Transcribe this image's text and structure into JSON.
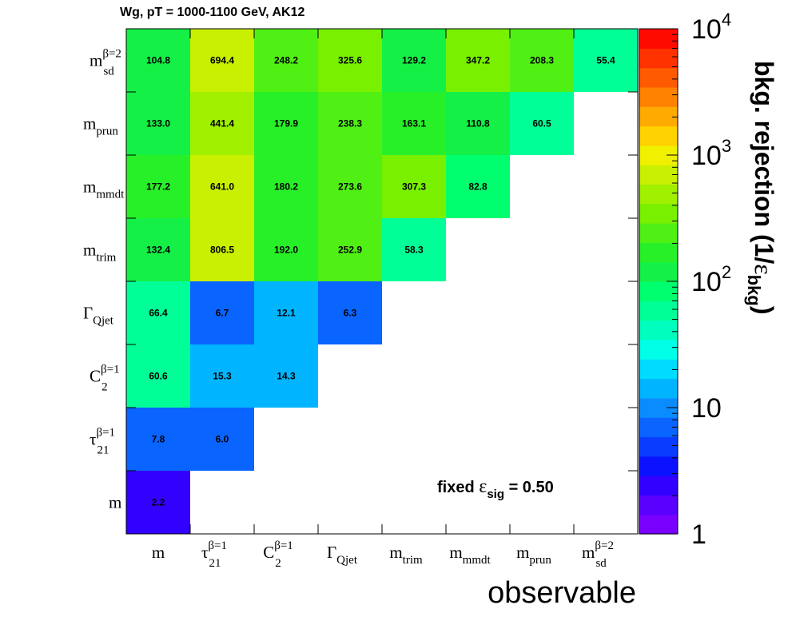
{
  "chart_data": {
    "type": "heatmap",
    "title": "Wg, pT = 1000-1100 GeV, AK12",
    "xlabel": "observable",
    "zlabel": "bkg. rejection (1/ε_bkg)",
    "zlabel_parts": {
      "main": "bkg. rejection (1/",
      "eps": "ε",
      "sub": "bkg",
      "close": ")"
    },
    "zscale": "log",
    "zlim": [
      1,
      10000
    ],
    "z_ticks": [
      {
        "value": 1,
        "base": "1",
        "exp": ""
      },
      {
        "value": 10,
        "base": "10",
        "exp": ""
      },
      {
        "value": 100,
        "base": "10",
        "exp": "2"
      },
      {
        "value": 1000,
        "base": "10",
        "exp": "3"
      },
      {
        "value": 10000,
        "base": "10",
        "exp": "4"
      }
    ],
    "annotation": {
      "prefix": "fixed ",
      "eps": "ε",
      "sub": "sig",
      "suffix": " = 0.50"
    },
    "categories": [
      {
        "main": "m",
        "sub": "",
        "sup": ""
      },
      {
        "main": "τ",
        "sub": "21",
        "sup": "β=1"
      },
      {
        "main": "C",
        "sub": "2",
        "sup": "β=1"
      },
      {
        "main": "Γ",
        "sub": "Qjet",
        "sup": ""
      },
      {
        "main": "m",
        "sub": "trim",
        "sup": ""
      },
      {
        "main": "m",
        "sub": "mmdt",
        "sup": ""
      },
      {
        "main": "m",
        "sub": "prun",
        "sup": ""
      },
      {
        "main": "m",
        "sub": "sd",
        "sup": "β=2"
      }
    ],
    "cells": [
      {
        "x": 0,
        "y": 0,
        "value": 2.2,
        "label": "2.2"
      },
      {
        "x": 0,
        "y": 1,
        "value": 7.8,
        "label": "7.8"
      },
      {
        "x": 1,
        "y": 1,
        "value": 6.0,
        "label": "6.0"
      },
      {
        "x": 0,
        "y": 2,
        "value": 60.6,
        "label": "60.6"
      },
      {
        "x": 1,
        "y": 2,
        "value": 15.3,
        "label": "15.3"
      },
      {
        "x": 2,
        "y": 2,
        "value": 14.3,
        "label": "14.3"
      },
      {
        "x": 0,
        "y": 3,
        "value": 66.4,
        "label": "66.4"
      },
      {
        "x": 1,
        "y": 3,
        "value": 6.7,
        "label": "6.7"
      },
      {
        "x": 2,
        "y": 3,
        "value": 12.1,
        "label": "12.1"
      },
      {
        "x": 3,
        "y": 3,
        "value": 6.3,
        "label": "6.3"
      },
      {
        "x": 0,
        "y": 4,
        "value": 132.4,
        "label": "132.4"
      },
      {
        "x": 1,
        "y": 4,
        "value": 806.5,
        "label": "806.5"
      },
      {
        "x": 2,
        "y": 4,
        "value": 192.0,
        "label": "192.0"
      },
      {
        "x": 3,
        "y": 4,
        "value": 252.9,
        "label": "252.9"
      },
      {
        "x": 4,
        "y": 4,
        "value": 58.3,
        "label": "58.3"
      },
      {
        "x": 0,
        "y": 5,
        "value": 177.2,
        "label": "177.2"
      },
      {
        "x": 1,
        "y": 5,
        "value": 641.0,
        "label": "641.0"
      },
      {
        "x": 2,
        "y": 5,
        "value": 180.2,
        "label": "180.2"
      },
      {
        "x": 3,
        "y": 5,
        "value": 273.6,
        "label": "273.6"
      },
      {
        "x": 4,
        "y": 5,
        "value": 307.3,
        "label": "307.3"
      },
      {
        "x": 5,
        "y": 5,
        "value": 82.8,
        "label": "82.8"
      },
      {
        "x": 0,
        "y": 6,
        "value": 133.0,
        "label": "133.0"
      },
      {
        "x": 1,
        "y": 6,
        "value": 441.4,
        "label": "441.4"
      },
      {
        "x": 2,
        "y": 6,
        "value": 179.9,
        "label": "179.9"
      },
      {
        "x": 3,
        "y": 6,
        "value": 238.3,
        "label": "238.3"
      },
      {
        "x": 4,
        "y": 6,
        "value": 163.1,
        "label": "163.1"
      },
      {
        "x": 5,
        "y": 6,
        "value": 110.8,
        "label": "110.8"
      },
      {
        "x": 6,
        "y": 6,
        "value": 60.5,
        "label": "60.5"
      },
      {
        "x": 0,
        "y": 7,
        "value": 104.8,
        "label": "104.8"
      },
      {
        "x": 1,
        "y": 7,
        "value": 694.4,
        "label": "694.4"
      },
      {
        "x": 2,
        "y": 7,
        "value": 248.2,
        "label": "248.2"
      },
      {
        "x": 3,
        "y": 7,
        "value": 325.6,
        "label": "325.6"
      },
      {
        "x": 4,
        "y": 7,
        "value": 129.2,
        "label": "129.2"
      },
      {
        "x": 5,
        "y": 7,
        "value": 347.2,
        "label": "347.2"
      },
      {
        "x": 6,
        "y": 7,
        "value": 208.3,
        "label": "208.3"
      },
      {
        "x": 7,
        "y": 7,
        "value": 55.4,
        "label": "55.4"
      }
    ],
    "palette": [
      "#7a00ff",
      "#5a00ff",
      "#3200ff",
      "#0a12ff",
      "#0a3cff",
      "#0a64ff",
      "#0a8cff",
      "#00b4ff",
      "#00dcff",
      "#00ffe6",
      "#00ffbe",
      "#00ff96",
      "#00ff6e",
      "#14f046",
      "#28f028",
      "#50f014",
      "#78f000",
      "#a0f000",
      "#c8f000",
      "#f0f000",
      "#ffd200",
      "#ffaa00",
      "#ff8200",
      "#ff5a00",
      "#ff3200",
      "#ff0a00"
    ],
    "grid": false
  }
}
